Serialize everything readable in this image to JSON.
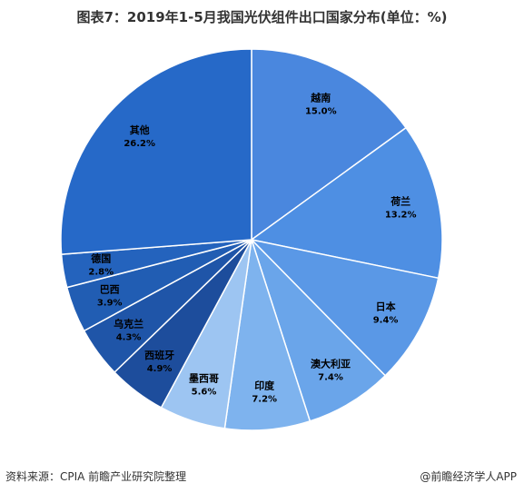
{
  "title": "图表7：2019年1-5月我国光伏组件出口国家分布(单位：%)",
  "footer": {
    "source": "资料来源：CPIA 前瞻产业研究院整理",
    "brand": "@前瞻经济学人APP"
  },
  "colors": {
    "越南": "#4a87de",
    "荷兰": "#4e8fe3",
    "日本": "#5a98e6",
    "澳大利亚": "#6aa5ea",
    "印度": "#7eb3ee",
    "墨西哥": "#9dc5f2",
    "西班牙": "#1d4d9c",
    "乌克兰": "#1f55a8",
    "巴西": "#215db3",
    "德国": "#2463bd",
    "其他": "#2669c8"
  },
  "chart_data": {
    "type": "pie",
    "title": "图表7：2019年1-5月我国光伏组件出口国家分布(单位：%)",
    "unit": "%",
    "slices": [
      {
        "name": "越南",
        "value": 15.0,
        "label": "15.0%"
      },
      {
        "name": "荷兰",
        "value": 13.2,
        "label": "13.2%"
      },
      {
        "name": "日本",
        "value": 9.4,
        "label": "9.4%"
      },
      {
        "name": "澳大利亚",
        "value": 7.4,
        "label": "7.4%"
      },
      {
        "name": "印度",
        "value": 7.2,
        "label": "7.2%"
      },
      {
        "name": "墨西哥",
        "value": 5.6,
        "label": "5.6%"
      },
      {
        "name": "西班牙",
        "value": 4.9,
        "label": "4.9%"
      },
      {
        "name": "乌克兰",
        "value": 4.3,
        "label": "4.3%"
      },
      {
        "name": "巴西",
        "value": 3.9,
        "label": "3.9%"
      },
      {
        "name": "德国",
        "value": 2.8,
        "label": "2.8%"
      },
      {
        "name": "其他",
        "value": 26.2,
        "label": "26.2%"
      }
    ],
    "start_angle": "12 o'clock",
    "direction": "clockwise",
    "legend": "none"
  }
}
